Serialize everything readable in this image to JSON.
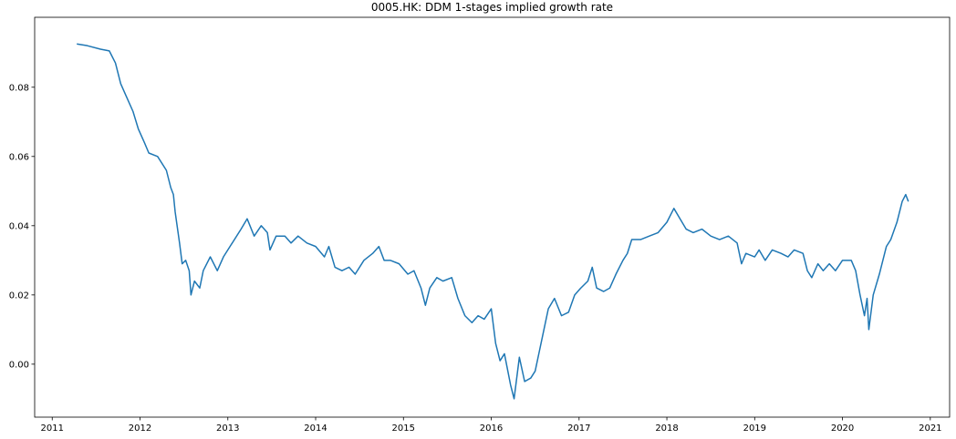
{
  "chart_data": {
    "type": "line",
    "title": "0005.HK: DDM 1-stages implied growth rate",
    "x": [
      2011.28,
      2011.4,
      2011.55,
      2011.65,
      2011.72,
      2011.78,
      2011.85,
      2011.92,
      2011.98,
      2012.05,
      2012.1,
      2012.2,
      2012.3,
      2012.35,
      2012.38,
      2012.4,
      2012.45,
      2012.48,
      2012.52,
      2012.56,
      2012.58,
      2012.62,
      2012.68,
      2012.72,
      2012.8,
      2012.88,
      2012.95,
      2013.05,
      2013.15,
      2013.22,
      2013.3,
      2013.38,
      2013.45,
      2013.48,
      2013.55,
      2013.65,
      2013.72,
      2013.8,
      2013.9,
      2014.0,
      2014.1,
      2014.15,
      2014.22,
      2014.3,
      2014.38,
      2014.45,
      2014.55,
      2014.65,
      2014.72,
      2014.78,
      2014.85,
      2014.95,
      2015.05,
      2015.12,
      2015.2,
      2015.25,
      2015.3,
      2015.38,
      2015.45,
      2015.55,
      2015.62,
      2015.7,
      2015.78,
      2015.85,
      2015.92,
      2016.0,
      2016.05,
      2016.1,
      2016.15,
      2016.22,
      2016.26,
      2016.32,
      2016.38,
      2016.45,
      2016.5,
      2016.55,
      2016.6,
      2016.65,
      2016.72,
      2016.8,
      2016.88,
      2016.95,
      2017.02,
      2017.1,
      2017.15,
      2017.2,
      2017.28,
      2017.35,
      2017.42,
      2017.5,
      2017.55,
      2017.6,
      2017.7,
      2017.8,
      2017.9,
      2018.0,
      2018.08,
      2018.15,
      2018.22,
      2018.3,
      2018.4,
      2018.5,
      2018.6,
      2018.7,
      2018.8,
      2018.85,
      2018.9,
      2019.0,
      2019.05,
      2019.12,
      2019.2,
      2019.3,
      2019.38,
      2019.45,
      2019.55,
      2019.6,
      2019.65,
      2019.72,
      2019.78,
      2019.85,
      2019.92,
      2020.0,
      2020.1,
      2020.15,
      2020.2,
      2020.25,
      2020.28,
      2020.3,
      2020.35,
      2020.42,
      2020.5,
      2020.55,
      2020.62,
      2020.68,
      2020.72,
      2020.75
    ],
    "series": [
      {
        "color": "#1f77b4",
        "values": [
          0.0925,
          0.092,
          0.091,
          0.0905,
          0.087,
          0.081,
          0.077,
          0.073,
          0.068,
          0.064,
          0.061,
          0.06,
          0.056,
          0.051,
          0.049,
          0.044,
          0.035,
          0.029,
          0.03,
          0.027,
          0.02,
          0.024,
          0.022,
          0.027,
          0.031,
          0.027,
          0.031,
          0.035,
          0.039,
          0.042,
          0.037,
          0.04,
          0.038,
          0.033,
          0.037,
          0.037,
          0.035,
          0.037,
          0.035,
          0.034,
          0.031,
          0.034,
          0.028,
          0.027,
          0.028,
          0.026,
          0.03,
          0.032,
          0.034,
          0.03,
          0.03,
          0.029,
          0.026,
          0.027,
          0.022,
          0.017,
          0.022,
          0.025,
          0.024,
          0.025,
          0.019,
          0.014,
          0.012,
          0.014,
          0.013,
          0.016,
          0.006,
          0.001,
          0.003,
          -0.006,
          -0.01,
          0.002,
          -0.005,
          -0.004,
          -0.002,
          0.004,
          0.01,
          0.016,
          0.019,
          0.014,
          0.015,
          0.02,
          0.022,
          0.024,
          0.028,
          0.022,
          0.021,
          0.022,
          0.026,
          0.03,
          0.032,
          0.036,
          0.036,
          0.037,
          0.038,
          0.041,
          0.045,
          0.042,
          0.039,
          0.038,
          0.039,
          0.037,
          0.036,
          0.037,
          0.035,
          0.029,
          0.032,
          0.031,
          0.033,
          0.03,
          0.033,
          0.032,
          0.031,
          0.033,
          0.032,
          0.027,
          0.025,
          0.029,
          0.027,
          0.029,
          0.027,
          0.03,
          0.03,
          0.027,
          0.02,
          0.014,
          0.019,
          0.01,
          0.02,
          0.026,
          0.034,
          0.036,
          0.041,
          0.047,
          0.049,
          0.047
        ]
      }
    ],
    "xlim": [
      2010.8,
      2021.22
    ],
    "xticks": [
      2011,
      2012,
      2013,
      2014,
      2015,
      2016,
      2017,
      2018,
      2019,
      2020,
      2021
    ],
    "ylim": [
      -0.0153,
      0.1002
    ],
    "yticks": [
      {
        "value": 0,
        "label": "0.00"
      },
      0.02,
      0.04,
      0.06,
      0.08
    ],
    "grid": false
  }
}
